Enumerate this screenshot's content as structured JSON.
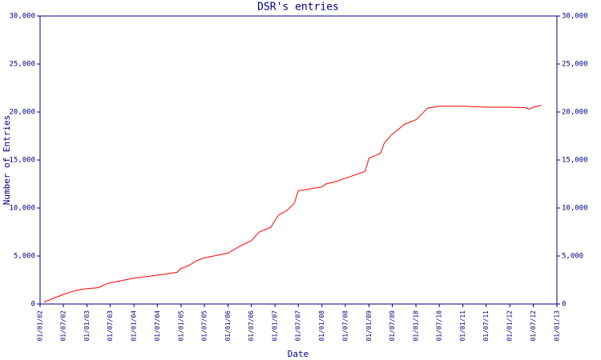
{
  "chart_data": {
    "type": "line",
    "title": "DSR's entries",
    "xlabel": "Date",
    "ylabel": "Number of Entries",
    "x": [
      "2002-02-01",
      "2002-07-01",
      "2002-10-01",
      "2003-01-01",
      "2003-04-01",
      "2003-06-01",
      "2003-07-01",
      "2004-01-01",
      "2004-07-01",
      "2004-12-01",
      "2005-01-01",
      "2005-03-01",
      "2005-05-01",
      "2005-07-01",
      "2006-01-01",
      "2006-04-01",
      "2006-07-01",
      "2006-09-01",
      "2006-12-01",
      "2007-01-01",
      "2007-02-01",
      "2007-04-01",
      "2007-06-01",
      "2007-07-01",
      "2008-01-01",
      "2008-02-01",
      "2008-05-01",
      "2008-07-01",
      "2008-12-01",
      "2009-01-01",
      "2009-04-01",
      "2009-05-01",
      "2009-07-01",
      "2009-08-01",
      "2009-10-01",
      "2010-01-01",
      "2010-02-01",
      "2010-04-01",
      "2010-07-01",
      "2011-01-01",
      "2011-07-01",
      "2012-01-01",
      "2012-05-01",
      "2012-06-01",
      "2012-07-01",
      "2012-09-01"
    ],
    "series": [
      {
        "name": "entries",
        "color": "#ff0000",
        "values": [
          200,
          1000,
          1400,
          1600,
          1700,
          2100,
          2200,
          2700,
          3000,
          3300,
          3700,
          4000,
          4500,
          4800,
          5300,
          6000,
          6600,
          7500,
          8000,
          8700,
          9300,
          9700,
          10500,
          11800,
          12200,
          12500,
          12800,
          13100,
          13800,
          15200,
          15700,
          16800,
          17700,
          18000,
          18700,
          19200,
          19600,
          20400,
          20600,
          20600,
          20500,
          20500,
          20450,
          20300,
          20500,
          20700
        ]
      }
    ],
    "xlim": [
      "2002-01-01",
      "2013-01-01"
    ],
    "xticks": [
      {
        "value": "2002-01-01",
        "label": "01/01/02"
      },
      {
        "value": "2002-07-01",
        "label": "01/07/02"
      },
      {
        "value": "2003-01-01",
        "label": "01/01/03"
      },
      {
        "value": "2003-07-01",
        "label": "01/07/03"
      },
      {
        "value": "2004-01-01",
        "label": "01/01/04"
      },
      {
        "value": "2004-07-01",
        "label": "01/07/04"
      },
      {
        "value": "2005-01-01",
        "label": "01/01/05"
      },
      {
        "value": "2005-07-01",
        "label": "01/07/05"
      },
      {
        "value": "2006-01-01",
        "label": "01/01/06"
      },
      {
        "value": "2006-07-01",
        "label": "01/07/06"
      },
      {
        "value": "2007-01-01",
        "label": "01/01/07"
      },
      {
        "value": "2007-07-01",
        "label": "01/07/07"
      },
      {
        "value": "2008-01-01",
        "label": "01/01/08"
      },
      {
        "value": "2008-07-01",
        "label": "01/07/08"
      },
      {
        "value": "2009-01-01",
        "label": "01/01/09"
      },
      {
        "value": "2009-07-01",
        "label": "01/07/09"
      },
      {
        "value": "2010-01-01",
        "label": "01/01/10"
      },
      {
        "value": "2010-07-01",
        "label": "01/07/10"
      },
      {
        "value": "2011-01-01",
        "label": "01/01/11"
      },
      {
        "value": "2011-07-01",
        "label": "01/07/11"
      },
      {
        "value": "2012-01-01",
        "label": "01/01/12"
      },
      {
        "value": "2012-07-01",
        "label": "01/07/12"
      },
      {
        "value": "2013-01-01",
        "label": "01/01/13"
      }
    ],
    "ylim": [
      0,
      30000
    ],
    "yticks": [
      0,
      {
        "value": 5000,
        "label": "5,000"
      },
      {
        "value": 10000,
        "label": "10,000"
      },
      {
        "value": 15000,
        "label": "15,000"
      },
      {
        "value": 20000,
        "label": "20,000"
      },
      {
        "value": 25000,
        "label": "25,000"
      },
      {
        "value": 30000,
        "label": "30,000"
      }
    ],
    "y2lim": [
      0,
      30000
    ],
    "y2ticks": [
      0,
      {
        "value": 5000,
        "label": "5,000"
      },
      {
        "value": 10000,
        "label": "10,000"
      },
      {
        "value": 15000,
        "label": "15,000"
      },
      {
        "value": 20000,
        "label": "20,000"
      },
      {
        "value": 25000,
        "label": "25,000"
      },
      {
        "value": 30000,
        "label": "30,000"
      }
    ]
  }
}
